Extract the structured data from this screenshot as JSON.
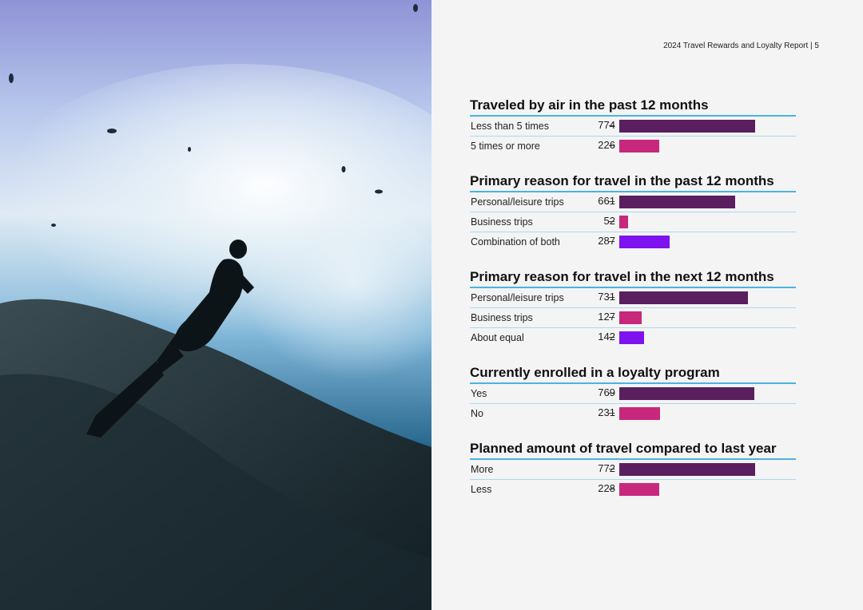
{
  "header": {
    "text": "2024 Travel Rewards and Loyalty Report | 5"
  },
  "colors": {
    "purple": "#5a1f5f",
    "magenta": "#c8287c",
    "violet": "#7e13f0",
    "rule": "#4ab3e2"
  },
  "chart_data": [
    {
      "type": "bar",
      "title": "Traveled by air in the past 12 months",
      "categories": [
        "Less than 5 times",
        "5 times or more"
      ],
      "values": [
        774,
        226
      ],
      "colors": [
        "#5a1f5f",
        "#c8287c"
      ]
    },
    {
      "type": "bar",
      "title": "Primary reason for travel in the past 12 months",
      "categories": [
        "Personal/leisure trips",
        "Business trips",
        "Combination of both"
      ],
      "values": [
        661,
        52,
        287
      ],
      "colors": [
        "#5a1f5f",
        "#c8287c",
        "#7e13f0"
      ]
    },
    {
      "type": "bar",
      "title": "Primary reason for travel in the next 12 months",
      "categories": [
        "Personal/leisure trips",
        "Business trips",
        "About equal"
      ],
      "values": [
        731,
        127,
        142
      ],
      "colors": [
        "#5a1f5f",
        "#c8287c",
        "#7e13f0"
      ]
    },
    {
      "type": "bar",
      "title": "Currently enrolled in a loyalty program",
      "categories": [
        "Yes",
        "No"
      ],
      "values": [
        769,
        231
      ],
      "colors": [
        "#5a1f5f",
        "#c8287c"
      ]
    },
    {
      "type": "bar",
      "title": "Planned amount of travel compared to last year",
      "categories": [
        "More",
        "Less"
      ],
      "values": [
        772,
        228
      ],
      "colors": [
        "#5a1f5f",
        "#c8287c"
      ]
    }
  ]
}
